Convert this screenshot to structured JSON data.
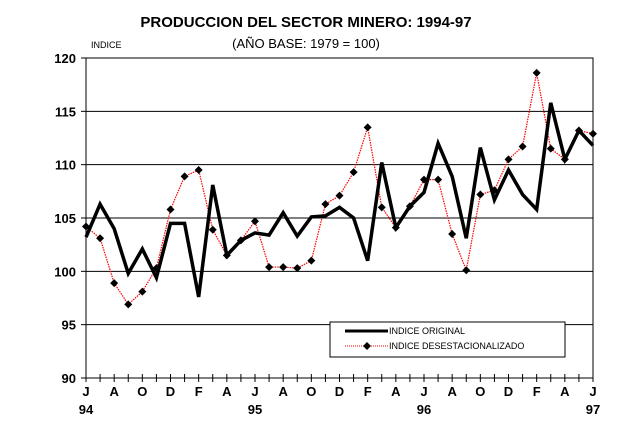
{
  "chart_data": {
    "type": "line",
    "title": "PRODUCCION DEL SECTOR MINERO: 1994-97",
    "subtitle": "(AÑO BASE: 1979 = 100)",
    "ylabel": "INDICE",
    "xlabel": "",
    "ylim": [
      90,
      120
    ],
    "yticks": [
      "90",
      "95",
      "100",
      "105",
      "110",
      "115",
      "120"
    ],
    "grid": true,
    "legend_position": "bottom-right",
    "x_tick_labels": [
      {
        "month_index": 0,
        "label": "J",
        "year": "94"
      },
      {
        "month_index": 2,
        "label": "A",
        "year": ""
      },
      {
        "month_index": 4,
        "label": "O",
        "year": ""
      },
      {
        "month_index": 6,
        "label": "D",
        "year": ""
      },
      {
        "month_index": 8,
        "label": "F",
        "year": ""
      },
      {
        "month_index": 10,
        "label": "A",
        "year": ""
      },
      {
        "month_index": 12,
        "label": "J",
        "year": "95"
      },
      {
        "month_index": 14,
        "label": "A",
        "year": ""
      },
      {
        "month_index": 16,
        "label": "O",
        "year": ""
      },
      {
        "month_index": 18,
        "label": "D",
        "year": ""
      },
      {
        "month_index": 20,
        "label": "F",
        "year": ""
      },
      {
        "month_index": 22,
        "label": "A",
        "year": ""
      },
      {
        "month_index": 24,
        "label": "J",
        "year": "96"
      },
      {
        "month_index": 26,
        "label": "A",
        "year": ""
      },
      {
        "month_index": 28,
        "label": "O",
        "year": ""
      },
      {
        "month_index": 30,
        "label": "D",
        "year": ""
      },
      {
        "month_index": 32,
        "label": "F",
        "year": ""
      },
      {
        "month_index": 34,
        "label": "A",
        "year": ""
      },
      {
        "month_index": 36,
        "label": "J",
        "year": "97"
      }
    ],
    "n_months": 37,
    "series": [
      {
        "name": "INDICE ORIGINAL",
        "color": "#000000",
        "values": [
          103.2,
          106.3,
          104.0,
          99.8,
          102.1,
          99.4,
          104.5,
          104.5,
          97.6,
          108.1,
          101.5,
          102.9,
          103.6,
          103.4,
          105.5,
          103.3,
          105.1,
          105.2,
          106.0,
          105.0,
          101.0,
          110.2,
          104.1,
          106.1,
          107.4,
          112.0,
          108.9,
          103.1,
          111.6,
          106.7,
          109.5,
          107.2,
          105.8,
          115.8,
          110.5,
          113.2,
          111.8
        ]
      },
      {
        "name": "INDICE DESESTACIONALIZADO",
        "color": "#ff0000",
        "marker_color": "#000000",
        "values": [
          104.2,
          103.1,
          98.9,
          96.9,
          98.1,
          100.3,
          105.8,
          108.9,
          109.5,
          103.9,
          101.5,
          102.9,
          104.7,
          100.4,
          100.4,
          100.3,
          101.0,
          106.3,
          107.1,
          109.3,
          113.5,
          106.0,
          104.1,
          106.1,
          108.6,
          108.6,
          103.5,
          100.1,
          107.2,
          107.6,
          110.5,
          111.7,
          118.6,
          111.5,
          110.5,
          113.2,
          112.9
        ]
      }
    ]
  }
}
